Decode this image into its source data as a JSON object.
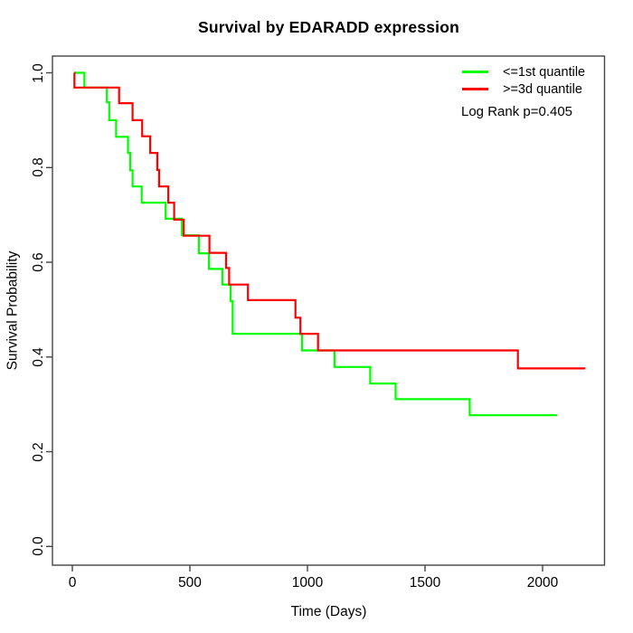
{
  "title": "Survival by EDARADD expression",
  "axes": {
    "x": {
      "label": "Time (Days)"
    },
    "y": {
      "label": "Survival Probability"
    }
  },
  "legend": {
    "note": "Log Rank p=0.405"
  },
  "colors": {
    "group_low": "#00ff00",
    "group_high": "#ff0000",
    "axis": "#454545",
    "background": "#ffffff"
  },
  "chart_data": {
    "type": "line",
    "variant": "kaplan-meier-step",
    "title": "Survival by EDARADD expression",
    "xlabel": "Time (Days)",
    "ylabel": "Survival Probability",
    "xlim": [
      0,
      2200
    ],
    "ylim": [
      0,
      1
    ],
    "x_ticks": [
      0,
      500,
      1000,
      1500,
      2000
    ],
    "y_ticks": [
      0.0,
      0.2,
      0.4,
      0.6,
      0.8,
      1.0
    ],
    "grid": false,
    "legend_position": "top-right",
    "annotation": "Log Rank p=0.405",
    "series": [
      {
        "name": "<=1st quantile",
        "color": "#00ff00",
        "points": [
          [
            8,
            1.0
          ],
          [
            51,
            0.969
          ],
          [
            147,
            0.938
          ],
          [
            157,
            0.9
          ],
          [
            186,
            0.865
          ],
          [
            237,
            0.831
          ],
          [
            246,
            0.794
          ],
          [
            256,
            0.76
          ],
          [
            295,
            0.726
          ],
          [
            397,
            0.692
          ],
          [
            466,
            0.657
          ],
          [
            538,
            0.619
          ],
          [
            581,
            0.586
          ],
          [
            638,
            0.553
          ],
          [
            673,
            0.518
          ],
          [
            682,
            0.449
          ],
          [
            977,
            0.414
          ],
          [
            1115,
            0.379
          ],
          [
            1267,
            0.344
          ],
          [
            1375,
            0.311
          ],
          [
            1690,
            0.277
          ],
          [
            2062,
            0.277
          ]
        ]
      },
      {
        "name": ">=3d quantile",
        "color": "#ff0000",
        "points": [
          [
            8,
            1.0
          ],
          [
            9,
            0.969
          ],
          [
            199,
            0.936
          ],
          [
            256,
            0.9
          ],
          [
            297,
            0.866
          ],
          [
            331,
            0.831
          ],
          [
            361,
            0.795
          ],
          [
            369,
            0.76
          ],
          [
            408,
            0.726
          ],
          [
            433,
            0.69
          ],
          [
            474,
            0.656
          ],
          [
            583,
            0.62
          ],
          [
            654,
            0.588
          ],
          [
            667,
            0.553
          ],
          [
            747,
            0.52
          ],
          [
            949,
            0.483
          ],
          [
            970,
            0.449
          ],
          [
            1045,
            0.414
          ],
          [
            1895,
            0.376
          ],
          [
            2182,
            0.376
          ]
        ]
      }
    ]
  }
}
